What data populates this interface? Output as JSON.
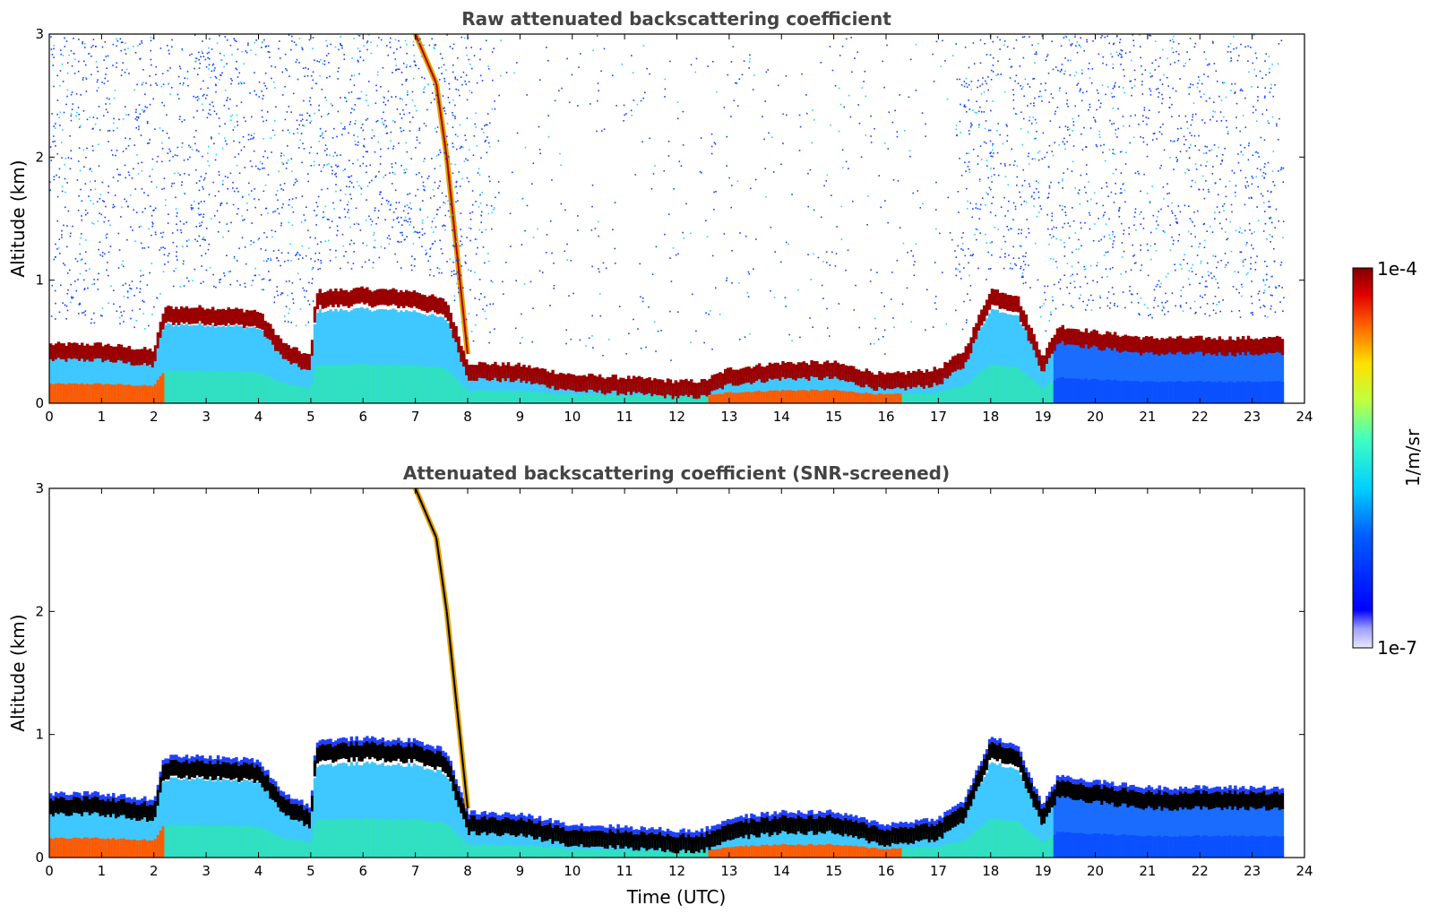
{
  "chart_data": [
    {
      "type": "heatmap",
      "title": "Raw attenuated backscattering coefficient",
      "xlabel": "",
      "ylabel": "Altitude (km)",
      "xlim": [
        0,
        24
      ],
      "ylim": [
        0,
        3
      ],
      "x_ticks": [
        "0",
        "1",
        "2",
        "3",
        "4",
        "5",
        "6",
        "7",
        "8",
        "9",
        "10",
        "11",
        "12",
        "13",
        "14",
        "15",
        "16",
        "17",
        "18",
        "19",
        "20",
        "21",
        "22",
        "23",
        "24"
      ],
      "y_ticks": [
        "0",
        "1",
        "2",
        "3"
      ],
      "data_end_time": 23.6,
      "boundary_layer_top_km": [
        [
          0,
          0.45
        ],
        [
          1,
          0.45
        ],
        [
          2,
          0.4
        ],
        [
          2.2,
          0.75
        ],
        [
          3,
          0.75
        ],
        [
          4,
          0.72
        ],
        [
          4.5,
          0.45
        ],
        [
          5,
          0.35
        ],
        [
          5.1,
          0.88
        ],
        [
          6,
          0.9
        ],
        [
          7,
          0.88
        ],
        [
          7.6,
          0.8
        ],
        [
          8,
          0.3
        ],
        [
          9,
          0.28
        ],
        [
          10,
          0.2
        ],
        [
          11,
          0.18
        ],
        [
          12,
          0.15
        ],
        [
          12.5,
          0.15
        ],
        [
          13,
          0.25
        ],
        [
          14,
          0.3
        ],
        [
          15,
          0.3
        ],
        [
          16,
          0.2
        ],
        [
          17,
          0.25
        ],
        [
          17.5,
          0.4
        ],
        [
          18,
          0.9
        ],
        [
          18.5,
          0.85
        ],
        [
          19,
          0.35
        ],
        [
          19.3,
          0.6
        ],
        [
          20,
          0.55
        ],
        [
          21,
          0.5
        ],
        [
          22,
          0.5
        ],
        [
          23,
          0.5
        ],
        [
          23.6,
          0.5
        ]
      ],
      "cloud_plume": [
        [
          7.0,
          3.0
        ],
        [
          7.4,
          2.6
        ],
        [
          7.6,
          2.0
        ],
        [
          7.8,
          1.2
        ],
        [
          8.0,
          0.4
        ]
      ]
    },
    {
      "type": "heatmap",
      "title": "Attenuated backscattering coefficient (SNR-screened)",
      "xlabel": "Time (UTC)",
      "ylabel": "Altitude (km)",
      "xlim": [
        0,
        24
      ],
      "ylim": [
        0,
        3
      ],
      "x_ticks": [
        "0",
        "1",
        "2",
        "3",
        "4",
        "5",
        "6",
        "7",
        "8",
        "9",
        "10",
        "11",
        "12",
        "13",
        "14",
        "15",
        "16",
        "17",
        "18",
        "19",
        "20",
        "21",
        "22",
        "23",
        "24"
      ],
      "y_ticks": [
        "0",
        "1",
        "2",
        "3"
      ],
      "data_end_time": 23.6
    }
  ],
  "colorbar": {
    "label": "1/m/sr",
    "max_label": "1e-4",
    "min_label": "1e-7",
    "scale": "log",
    "range": [
      1e-07,
      0.0001
    ],
    "colormap": "jet"
  }
}
